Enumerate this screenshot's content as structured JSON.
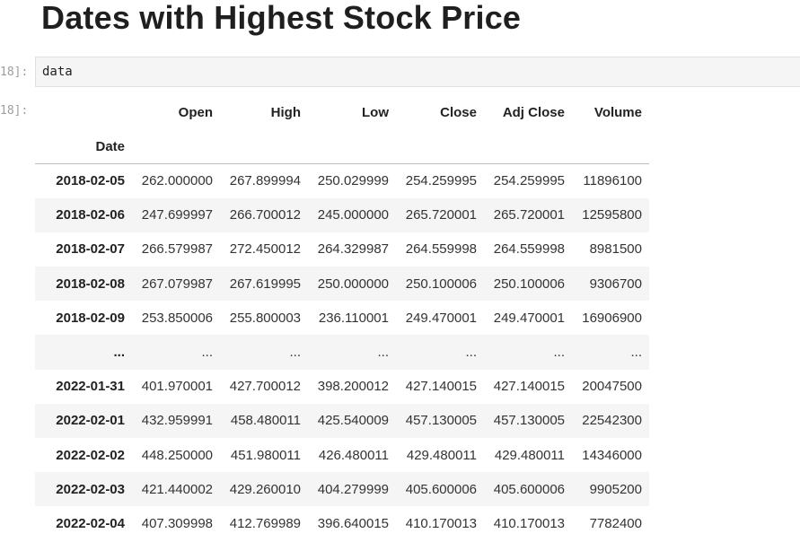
{
  "heading": "Dates with Highest Stock Price",
  "cells": {
    "input_prompt": "18]:",
    "output_prompt": "18]:",
    "code": "data"
  },
  "table": {
    "index_name": "Date",
    "columns": [
      "Open",
      "High",
      "Low",
      "Close",
      "Adj Close",
      "Volume"
    ],
    "rows": [
      {
        "index": "2018-02-05",
        "values": [
          "262.000000",
          "267.899994",
          "250.029999",
          "254.259995",
          "254.259995",
          "11896100"
        ]
      },
      {
        "index": "2018-02-06",
        "values": [
          "247.699997",
          "266.700012",
          "245.000000",
          "265.720001",
          "265.720001",
          "12595800"
        ]
      },
      {
        "index": "2018-02-07",
        "values": [
          "266.579987",
          "272.450012",
          "264.329987",
          "264.559998",
          "264.559998",
          "8981500"
        ]
      },
      {
        "index": "2018-02-08",
        "values": [
          "267.079987",
          "267.619995",
          "250.000000",
          "250.100006",
          "250.100006",
          "9306700"
        ]
      },
      {
        "index": "2018-02-09",
        "values": [
          "253.850006",
          "255.800003",
          "236.110001",
          "249.470001",
          "249.470001",
          "16906900"
        ]
      },
      {
        "index": "...",
        "values": [
          "...",
          "...",
          "...",
          "...",
          "...",
          "..."
        ]
      },
      {
        "index": "2022-01-31",
        "values": [
          "401.970001",
          "427.700012",
          "398.200012",
          "427.140015",
          "427.140015",
          "20047500"
        ]
      },
      {
        "index": "2022-02-01",
        "values": [
          "432.959991",
          "458.480011",
          "425.540009",
          "457.130005",
          "457.130005",
          "22542300"
        ]
      },
      {
        "index": "2022-02-02",
        "values": [
          "448.250000",
          "451.980011",
          "426.480011",
          "429.480011",
          "429.480011",
          "14346000"
        ]
      },
      {
        "index": "2022-02-03",
        "values": [
          "421.440002",
          "429.260010",
          "404.279999",
          "405.600006",
          "405.600006",
          "9905200"
        ]
      },
      {
        "index": "2022-02-04",
        "values": [
          "407.309998",
          "412.769989",
          "396.640015",
          "410.170013",
          "410.170013",
          "7782400"
        ]
      }
    ]
  }
}
